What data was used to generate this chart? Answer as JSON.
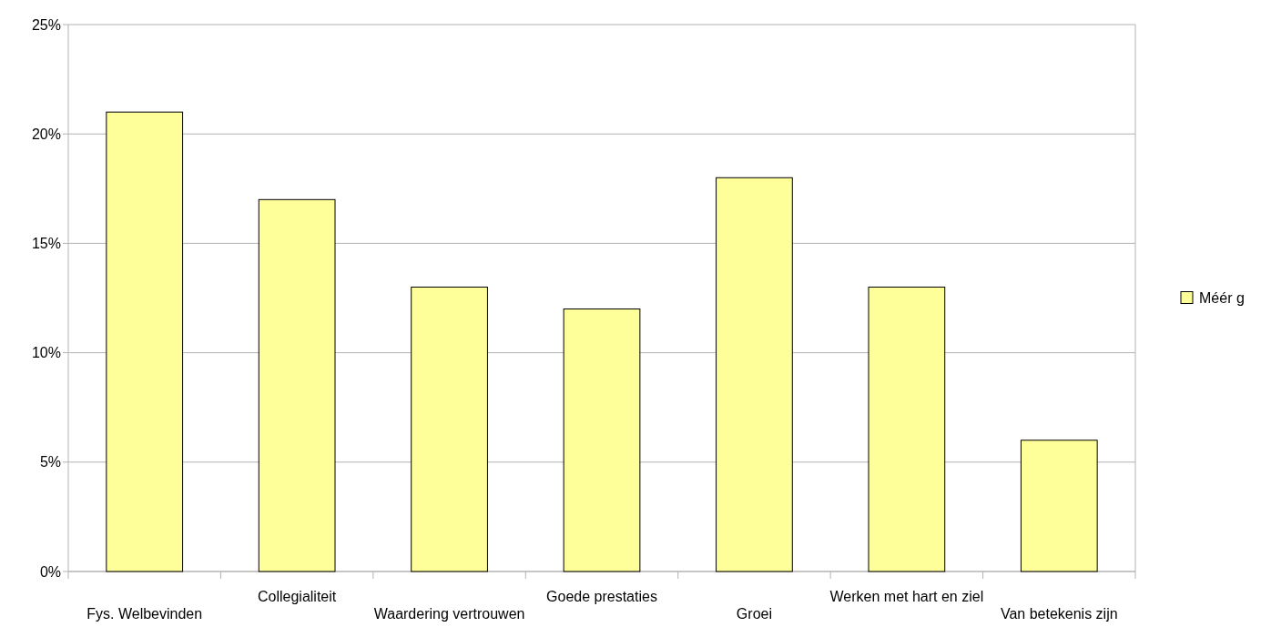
{
  "chart_data": {
    "type": "bar",
    "categories": [
      "Fys. Welbevinden",
      "Collegialiteit",
      "Waardering vertrouwen",
      "Goede prestaties",
      "Groei",
      "Werken met hart en ziel",
      "Van betekenis zijn"
    ],
    "series": [
      {
        "name": "Méér g",
        "color": "#ffff99",
        "values": [
          21,
          17,
          13,
          12,
          18,
          13,
          6
        ]
      }
    ],
    "ylim": [
      0,
      25
    ],
    "yticks": [
      {
        "value": 0,
        "label": "0%"
      },
      {
        "value": 5,
        "label": "5%"
      },
      {
        "value": 10,
        "label": "10%"
      },
      {
        "value": 15,
        "label": "15%"
      },
      {
        "value": 20,
        "label": "20%"
      },
      {
        "value": 25,
        "label": "25%"
      }
    ],
    "grid": "y",
    "legend": "right"
  }
}
